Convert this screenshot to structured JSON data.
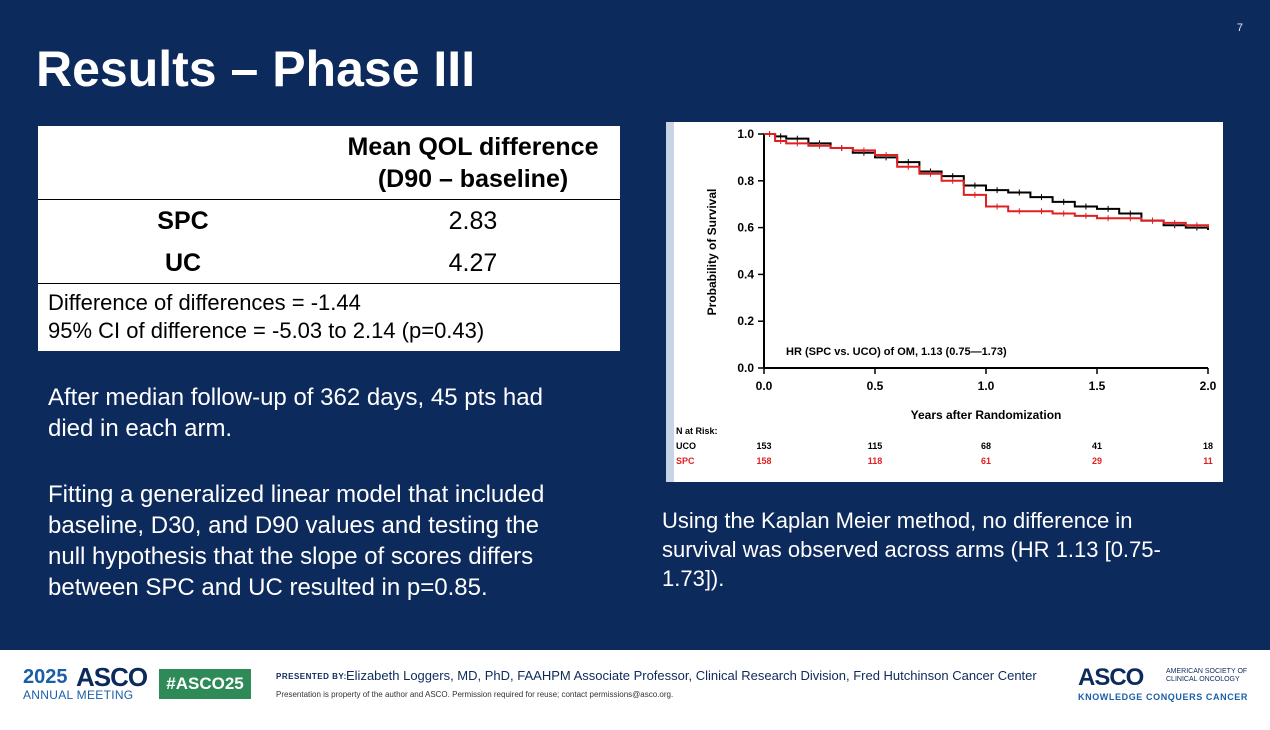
{
  "page_number": "7",
  "title": "Results – Phase III",
  "qol_table": {
    "header_line1": "Mean QOL difference",
    "header_line2": "(D90 – baseline)",
    "rows": [
      {
        "label": "SPC",
        "value": "2.83"
      },
      {
        "label": "UC",
        "value": "4.27"
      }
    ],
    "footer_line1": "Difference of differences = -1.44",
    "footer_line2": "95% CI of difference = -5.03 to 2.14 (p=0.43)"
  },
  "paragraphs": {
    "followup_line1": "After median follow-up of 362 days, 45 pts had",
    "followup_line2": "died in each arm.",
    "glm_line1": "Fitting a generalized linear model that included",
    "glm_line2": "baseline, D30, and D90 values and testing the",
    "glm_line3": "null hypothesis that the slope of scores differs",
    "glm_line4": "between SPC and UC resulted in p=0.85."
  },
  "chart_caption": {
    "line1": "Using the Kaplan Meier method, no difference in",
    "line2": "survival was observed across arms (HR 1.13 [0.75-",
    "line3": "1.73])."
  },
  "chart_data": {
    "type": "line",
    "title": "",
    "xlabel": "Years after Randomization",
    "ylabel": "Probability of Survival",
    "xlim": [
      0,
      2.0
    ],
    "ylim": [
      0,
      1.0
    ],
    "xticks": [
      "0.0",
      "0.5",
      "1.0",
      "1.5",
      "2.0"
    ],
    "yticks": [
      "0.0",
      "0.2",
      "0.4",
      "0.6",
      "0.8",
      "1.0"
    ],
    "annotation": "HR (SPC vs. UCO) of OM, 1.13 (0.75—1.73)",
    "series": [
      {
        "name": "UCO",
        "color": "#000000",
        "x": [
          0,
          0.05,
          0.1,
          0.2,
          0.3,
          0.4,
          0.5,
          0.6,
          0.7,
          0.8,
          0.9,
          1.0,
          1.1,
          1.2,
          1.3,
          1.4,
          1.5,
          1.6,
          1.7,
          1.8,
          1.9,
          2.0
        ],
        "values": [
          1.0,
          0.99,
          0.98,
          0.96,
          0.94,
          0.92,
          0.9,
          0.88,
          0.84,
          0.82,
          0.78,
          0.76,
          0.75,
          0.73,
          0.71,
          0.69,
          0.68,
          0.66,
          0.63,
          0.61,
          0.6,
          0.59
        ]
      },
      {
        "name": "SPC",
        "color": "#e02020",
        "x": [
          0,
          0.05,
          0.1,
          0.2,
          0.3,
          0.4,
          0.5,
          0.6,
          0.7,
          0.8,
          0.9,
          1.0,
          1.1,
          1.2,
          1.3,
          1.4,
          1.5,
          1.6,
          1.7,
          1.8,
          1.9,
          2.0
        ],
        "values": [
          1.0,
          0.97,
          0.96,
          0.95,
          0.94,
          0.93,
          0.91,
          0.86,
          0.83,
          0.8,
          0.74,
          0.69,
          0.67,
          0.67,
          0.66,
          0.65,
          0.64,
          0.64,
          0.63,
          0.62,
          0.61,
          0.6
        ]
      }
    ],
    "risk_table": {
      "label": "N at Risk:",
      "rows": [
        {
          "name": "UCO",
          "color": "#000000",
          "values": [
            "153",
            "115",
            "68",
            "41",
            "18"
          ]
        },
        {
          "name": "SPC",
          "color": "#e02020",
          "values": [
            "158",
            "118",
            "61",
            "29",
            "11"
          ]
        }
      ]
    }
  },
  "footer": {
    "logo_year": "2025",
    "logo_asco": "ASCO",
    "logo_sub": "ANNUAL MEETING",
    "hashtag": "#ASCO25",
    "presented_by": "PRESENTED BY:",
    "presenter": "Elizabeth Loggers, MD, PhD, FAAHPM Associate Professor, Clinical Research Division, Fred Hutchinson Cancer Center",
    "disclaimer": "Presentation is property of the author and ASCO. Permission required for reuse; contact permissions@asco.org.",
    "asco_right": "ASCO",
    "asco_society_line1": "AMERICAN SOCIETY OF",
    "asco_society_line2": "CLINICAL ONCOLOGY",
    "asco_tagline": "KNOWLEDGE CONQUERS CANCER"
  },
  "colors": {
    "slide_background": "#0d2a5c",
    "accent_green": "#2e8b57",
    "spc_red": "#e02020"
  }
}
